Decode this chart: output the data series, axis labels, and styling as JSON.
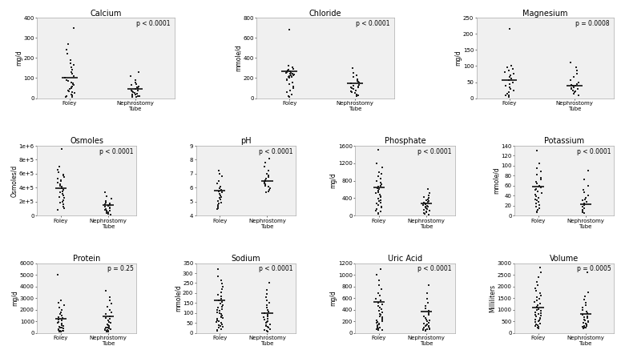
{
  "panels": [
    {
      "title": "Calcium",
      "ylabel": "mg/d",
      "pval": "p < 0.0001",
      "ylim": [
        0,
        400
      ],
      "yticks": [
        0,
        100,
        200,
        300,
        400
      ],
      "foley": [
        350,
        270,
        240,
        220,
        190,
        175,
        165,
        155,
        140,
        130,
        120,
        110,
        100,
        90,
        85,
        80,
        75,
        70,
        65,
        60,
        55,
        50,
        45,
        40,
        35,
        30,
        25,
        20,
        15,
        10,
        8,
        5
      ],
      "foley_mean": 100,
      "nephrostomy": [
        130,
        110,
        90,
        80,
        70,
        65,
        60,
        55,
        50,
        45,
        40,
        38,
        35,
        30,
        28,
        25,
        22,
        20,
        18,
        15,
        12,
        10,
        8,
        5
      ],
      "nephrostomy_mean": 45,
      "row": 0,
      "col": 0
    },
    {
      "title": "Chloride",
      "ylabel": "mmole/d",
      "pval": "p < 0.0001",
      "ylim": [
        0,
        800
      ],
      "yticks": [
        0,
        200,
        400,
        600,
        800
      ],
      "foley": [
        680,
        320,
        305,
        295,
        285,
        275,
        265,
        260,
        255,
        250,
        245,
        240,
        235,
        230,
        225,
        220,
        215,
        210,
        200,
        190,
        180,
        160,
        140,
        120,
        100,
        80,
        60,
        40,
        20,
        10
      ],
      "foley_mean": 270,
      "nephrostomy": [
        300,
        250,
        230,
        210,
        190,
        175,
        165,
        155,
        145,
        135,
        125,
        115,
        110,
        105,
        100,
        90,
        80,
        70,
        60,
        50,
        40,
        30,
        20
      ],
      "nephrostomy_mean": 150,
      "row": 0,
      "col": 1
    },
    {
      "title": "Magnesium",
      "ylabel": "mg/d",
      "pval": "p = 0.0008",
      "ylim": [
        0,
        250
      ],
      "yticks": [
        0,
        50,
        100,
        150,
        200,
        250
      ],
      "foley": [
        215,
        100,
        95,
        90,
        85,
        80,
        75,
        70,
        65,
        60,
        55,
        50,
        45,
        40,
        35,
        30,
        25,
        20,
        15,
        10,
        8,
        5
      ],
      "foley_mean": 55,
      "nephrostomy": [
        110,
        95,
        85,
        75,
        65,
        55,
        50,
        45,
        42,
        40,
        38,
        35,
        32,
        30,
        28,
        25,
        22,
        20,
        15,
        10
      ],
      "nephrostomy_mean": 40,
      "row": 0,
      "col": 2
    },
    {
      "title": "Osmoles",
      "ylabel": "Osmoles/d",
      "pval": "p < 0.0001",
      "ylim": [
        0,
        1000000
      ],
      "yticks": [
        0,
        200000,
        400000,
        600000,
        800000,
        1000000
      ],
      "yticklabels": [
        "0",
        "2e+5",
        "4e+5",
        "6e+5",
        "8e+5",
        "1e+6"
      ],
      "foley": [
        950000,
        700000,
        650000,
        620000,
        590000,
        570000,
        550000,
        530000,
        510000,
        490000,
        470000,
        450000,
        430000,
        410000,
        390000,
        370000,
        350000,
        330000,
        310000,
        290000,
        270000,
        250000,
        220000,
        200000,
        180000,
        160000,
        130000,
        100000,
        80000
      ],
      "foley_mean": 390000,
      "nephrostomy": [
        340000,
        280000,
        240000,
        210000,
        190000,
        175000,
        160000,
        148000,
        136000,
        124000,
        112000,
        100000,
        90000,
        82000,
        74000,
        65000,
        55000,
        45000,
        35000,
        25000,
        15000
      ],
      "nephrostomy_mean": 150000,
      "row": 1,
      "col": 0
    },
    {
      "title": "pH",
      "ylabel": "",
      "pval": "p < 0.0001",
      "ylim": [
        4,
        9
      ],
      "yticks": [
        4,
        5,
        6,
        7,
        8,
        9
      ],
      "foley": [
        7.2,
        7.0,
        6.8,
        6.5,
        6.3,
        6.1,
        5.95,
        5.85,
        5.75,
        5.65,
        5.55,
        5.45,
        5.35,
        5.25,
        5.15,
        5.05,
        4.95,
        4.85,
        4.75,
        4.65,
        4.55,
        4.45
      ],
      "foley_mean": 5.8,
      "nephrostomy": [
        8.1,
        7.8,
        7.5,
        7.2,
        7.0,
        6.85,
        6.75,
        6.65,
        6.55,
        6.48,
        6.42,
        6.35,
        6.28,
        6.22,
        6.15,
        6.05,
        5.95,
        5.85,
        5.75,
        5.65
      ],
      "nephrostomy_mean": 6.5,
      "row": 1,
      "col": 1
    },
    {
      "title": "Phosphate",
      "ylabel": "mg/d",
      "pval": "p < 0.0001",
      "ylim": [
        0,
        1600
      ],
      "yticks": [
        0,
        400,
        800,
        1200,
        1600
      ],
      "foley": [
        1500,
        1200,
        1100,
        1000,
        950,
        900,
        850,
        800,
        750,
        720,
        690,
        660,
        630,
        600,
        570,
        540,
        510,
        480,
        450,
        420,
        390,
        360,
        330,
        300,
        270,
        240,
        210,
        180,
        150,
        120,
        90,
        60,
        30
      ],
      "foley_mean": 650,
      "nephrostomy": [
        600,
        520,
        470,
        430,
        400,
        375,
        355,
        335,
        315,
        295,
        278,
        260,
        244,
        228,
        212,
        196,
        180,
        164,
        148,
        132,
        116,
        100,
        80,
        60,
        40,
        20
      ],
      "nephrostomy_mean": 270,
      "row": 1,
      "col": 2
    },
    {
      "title": "Potassium",
      "ylabel": "mmole/d",
      "pval": "p < 0.0001",
      "ylim": [
        0,
        140
      ],
      "yticks": [
        0,
        20,
        40,
        60,
        80,
        100,
        120,
        140
      ],
      "foley": [
        130,
        105,
        95,
        88,
        82,
        76,
        72,
        68,
        64,
        60,
        57,
        54,
        51,
        48,
        45,
        42,
        39,
        36,
        33,
        30,
        27,
        24,
        21,
        18,
        15,
        12,
        9,
        6
      ],
      "foley_mean": 58,
      "nephrostomy": [
        90,
        72,
        60,
        52,
        46,
        40,
        36,
        33,
        30,
        27,
        24,
        21,
        18,
        15,
        12,
        9,
        7,
        5
      ],
      "nephrostomy_mean": 22,
      "row": 1,
      "col": 3
    },
    {
      "title": "Protein",
      "ylabel": "mg/d",
      "pval": "p = 0.25",
      "ylim": [
        0,
        6000
      ],
      "yticks": [
        0,
        1000,
        2000,
        3000,
        4000,
        5000,
        6000
      ],
      "foley": [
        5000,
        2800,
        2600,
        2400,
        2200,
        2000,
        1800,
        1650,
        1500,
        1380,
        1260,
        1150,
        1050,
        960,
        870,
        790,
        720,
        650,
        590,
        530,
        480,
        430,
        380,
        340,
        300,
        260,
        220,
        190,
        160,
        130,
        100
      ],
      "foley_mean": 1200,
      "nephrostomy": [
        3600,
        3100,
        2800,
        2500,
        2250,
        2000,
        1800,
        1620,
        1460,
        1320,
        1190,
        1070,
        960,
        860,
        770,
        690,
        620,
        550,
        490,
        440,
        390,
        350,
        310,
        270,
        240,
        210,
        180,
        150,
        120,
        90
      ],
      "nephrostomy_mean": 1400,
      "row": 2,
      "col": 0
    },
    {
      "title": "Sodium",
      "ylabel": "mmole/d",
      "pval": "p < 0.0001",
      "ylim": [
        0,
        350
      ],
      "yticks": [
        0,
        50,
        100,
        150,
        200,
        250,
        300,
        350
      ],
      "foley": [
        320,
        285,
        265,
        248,
        232,
        218,
        205,
        193,
        182,
        172,
        163,
        155,
        147,
        140,
        133,
        127,
        121,
        115,
        110,
        104,
        99,
        94,
        89,
        84,
        79,
        74,
        70,
        65,
        60,
        55,
        50,
        45,
        40,
        35,
        30,
        25,
        20,
        15,
        10
      ],
      "foley_mean": 162,
      "nephrostomy": [
        250,
        215,
        195,
        178,
        163,
        150,
        138,
        127,
        117,
        108,
        100,
        92,
        85,
        78,
        72,
        66,
        60,
        55,
        50,
        45,
        40,
        35,
        30,
        25,
        20,
        15,
        10,
        5
      ],
      "nephrostomy_mean": 100,
      "row": 2,
      "col": 1
    },
    {
      "title": "Uric Acid",
      "ylabel": "mg/d",
      "pval": "p < 0.0001",
      "ylim": [
        0,
        1200
      ],
      "yticks": [
        0,
        200,
        400,
        600,
        800,
        1000,
        1200
      ],
      "foley": [
        1100,
        1000,
        900,
        820,
        750,
        690,
        640,
        595,
        555,
        520,
        488,
        458,
        430,
        403,
        378,
        354,
        332,
        310,
        290,
        270,
        252,
        234,
        218,
        202,
        188,
        174,
        161,
        149,
        137,
        126,
        116,
        107,
        98,
        90,
        82,
        75,
        68,
        62,
        56,
        50
      ],
      "foley_mean": 540,
      "nephrostomy": [
        820,
        680,
        590,
        520,
        465,
        418,
        378,
        343,
        312,
        284,
        259,
        237,
        217,
        198,
        181,
        165,
        151,
        138,
        126,
        115,
        105,
        96,
        87,
        79,
        71,
        64,
        58,
        52,
        46,
        41
      ],
      "nephrostomy_mean": 370,
      "row": 2,
      "col": 2
    },
    {
      "title": "Volume",
      "ylabel": "Milliliters",
      "pval": "p = 0.0005",
      "ylim": [
        0,
        3000
      ],
      "yticks": [
        0,
        500,
        1000,
        1500,
        2000,
        2500,
        3000
      ],
      "foley": [
        2800,
        2600,
        2400,
        2200,
        2050,
        1920,
        1810,
        1710,
        1620,
        1540,
        1460,
        1390,
        1320,
        1260,
        1200,
        1140,
        1090,
        1040,
        990,
        940,
        900,
        860,
        820,
        780,
        740,
        700,
        660,
        620,
        580,
        540,
        500,
        460,
        420,
        380,
        340,
        300,
        270,
        240,
        210
      ],
      "foley_mean": 1100,
      "nephrostomy": [
        2600,
        1750,
        1580,
        1430,
        1300,
        1190,
        1090,
        1000,
        920,
        850,
        790,
        730,
        680,
        630,
        585,
        543,
        503,
        465,
        430,
        397,
        366,
        337,
        310,
        285,
        262,
        240,
        220,
        200
      ],
      "nephrostomy_mean": 800,
      "row": 2,
      "col": 3
    }
  ],
  "dot_color": "#222222",
  "mean_color": "#111111",
  "bg_color": "#ffffff",
  "panel_bg": "#f0f0f0",
  "font_size": 5,
  "title_font_size": 7,
  "pval_font_size": 5.5,
  "ylabel_fontsize": 5.5,
  "xlabel_fontsize": 5.5
}
